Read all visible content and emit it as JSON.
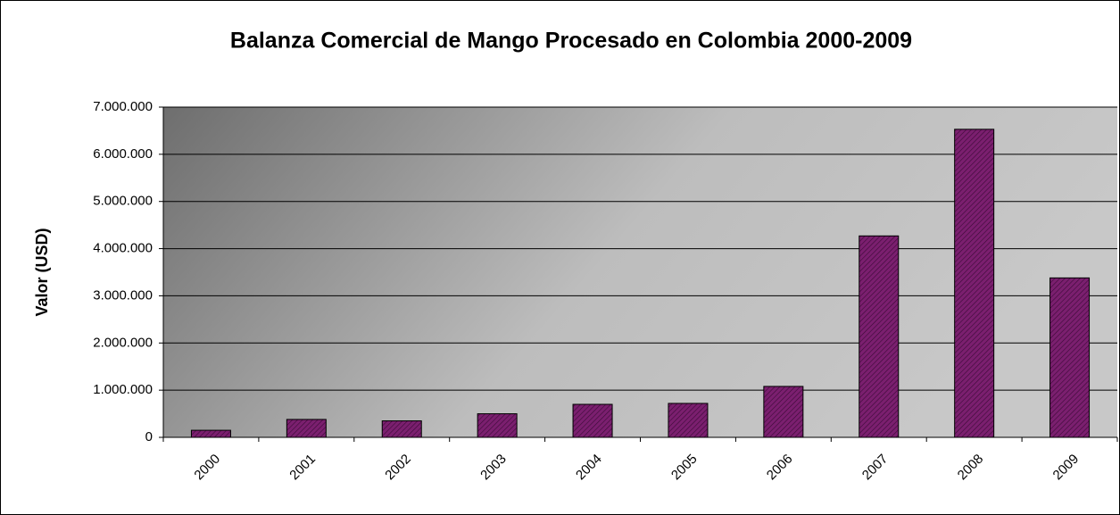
{
  "chart_data": {
    "type": "bar",
    "title": "Balanza Comercial de Mango Procesado en Colombia  2000-2009",
    "y_label": "Valor (USD)",
    "categories": [
      "2000",
      "2001",
      "2002",
      "2003",
      "2004",
      "2005",
      "2006",
      "2007",
      "2008",
      "2009"
    ],
    "values": [
      150000,
      380000,
      350000,
      500000,
      700000,
      720000,
      1080000,
      4270000,
      6530000,
      3380000
    ],
    "color": "#7b1f6f",
    "ylim": [
      0,
      7000000
    ],
    "yticks": [
      0,
      {
        "value": 1000000,
        "label": "1.000.000"
      },
      {
        "value": 2000000,
        "label": "2.000.000"
      },
      {
        "value": 3000000,
        "label": "3.000.000"
      },
      {
        "value": 4000000,
        "label": "4.000.000"
      },
      {
        "value": 5000000,
        "label": "5.000.000"
      },
      {
        "value": 6000000,
        "label": "6.000.000"
      },
      {
        "value": 7000000,
        "label": "7.000.000"
      }
    ],
    "grid": true
  }
}
